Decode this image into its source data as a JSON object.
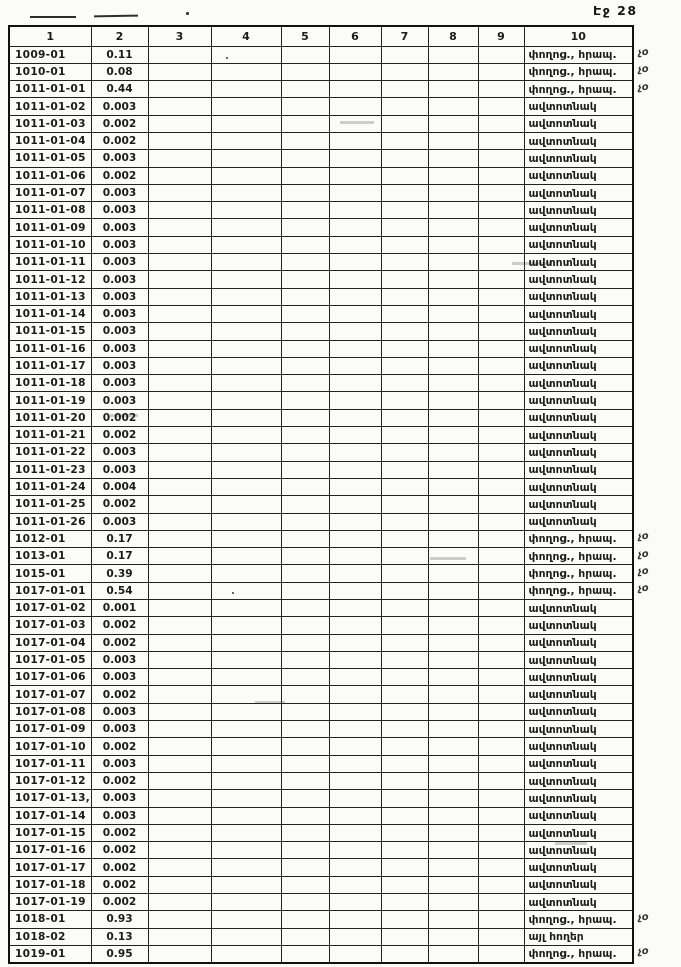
{
  "page": {
    "label": "Էջ 28"
  },
  "margin_note_glyph": "չօ",
  "table": {
    "headers": [
      "1",
      "2",
      "3",
      "4",
      "5",
      "6",
      "7",
      "8",
      "9",
      "10"
    ],
    "rows": [
      {
        "id": "1009-01",
        "value": "0.11",
        "use": "փողոց., հրապ.",
        "note": true
      },
      {
        "id": "1010-01",
        "value": "0.08",
        "use": "փողոց., հրապ.",
        "note": true
      },
      {
        "id": "1011-01-01",
        "value": "0.44",
        "use": "փողոց., հրապ.",
        "note": true
      },
      {
        "id": "1011-01-02",
        "value": "0.003",
        "use": "ավտոտնակ",
        "note": false
      },
      {
        "id": "1011-01-03",
        "value": "0.002",
        "use": "ավտոտնակ",
        "note": false
      },
      {
        "id": "1011-01-04",
        "value": "0.002",
        "use": "ավտոտնակ",
        "note": false
      },
      {
        "id": "1011-01-05",
        "value": "0.003",
        "use": "ավտոտնակ",
        "note": false
      },
      {
        "id": "1011-01-06",
        "value": "0.002",
        "use": "ավտոտնակ",
        "note": false
      },
      {
        "id": "1011-01-07",
        "value": "0.003",
        "use": "ավտոտնակ",
        "note": false
      },
      {
        "id": "1011-01-08",
        "value": "0.003",
        "use": "ավտոտնակ",
        "note": false
      },
      {
        "id": "1011-01-09",
        "value": "0.003",
        "use": "ավտոտնակ",
        "note": false
      },
      {
        "id": "1011-01-10",
        "value": "0.003",
        "use": "ավտոտնակ",
        "note": false
      },
      {
        "id": "1011-01-11",
        "value": "0.003",
        "use": "ավտոտնակ",
        "note": false
      },
      {
        "id": "1011-01-12",
        "value": "0.003",
        "use": "ավտոտնակ",
        "note": false
      },
      {
        "id": "1011-01-13",
        "value": "0.003",
        "use": "ավտոտնակ",
        "note": false
      },
      {
        "id": "1011-01-14",
        "value": "0.003",
        "use": "ավտոտնակ",
        "note": false
      },
      {
        "id": "1011-01-15",
        "value": "0.003",
        "use": "ավտոտնակ",
        "note": false
      },
      {
        "id": "1011-01-16",
        "value": "0.003",
        "use": "ավտոտնակ",
        "note": false
      },
      {
        "id": "1011-01-17",
        "value": "0.003",
        "use": "ավտոտնակ",
        "note": false
      },
      {
        "id": "1011-01-18",
        "value": "0.003",
        "use": "ավտոտնակ",
        "note": false
      },
      {
        "id": "1011-01-19",
        "value": "0.003",
        "use": "ավտոտնակ",
        "note": false
      },
      {
        "id": "1011-01-20",
        "value": "0.002",
        "use": "ավտոտնակ",
        "note": false
      },
      {
        "id": "1011-01-21",
        "value": "0.002",
        "use": "ավտոտնակ",
        "note": false
      },
      {
        "id": "1011-01-22",
        "value": "0.003",
        "use": "ավտոտնակ",
        "note": false
      },
      {
        "id": "1011-01-23",
        "value": "0.003",
        "use": "ավտոտնակ",
        "note": false
      },
      {
        "id": "1011-01-24",
        "value": "0.004",
        "use": "ավտոտնակ",
        "note": false
      },
      {
        "id": "1011-01-25",
        "value": "0.002",
        "use": "ավտոտնակ",
        "note": false
      },
      {
        "id": "1011-01-26",
        "value": "0.003",
        "use": "ավտոտնակ",
        "note": false
      },
      {
        "id": "1012-01",
        "value": "0.17",
        "use": "փողոց., հրապ.",
        "note": true
      },
      {
        "id": "1013-01",
        "value": "0.17",
        "use": "փողոց., հրապ.",
        "note": true
      },
      {
        "id": "1015-01",
        "value": "0.39",
        "use": "փողոց., հրապ.",
        "note": true
      },
      {
        "id": "1017-01-01",
        "value": "0.54",
        "use": "փողոց., հրապ.",
        "note": true
      },
      {
        "id": "1017-01-02",
        "value": "0.001",
        "use": "ավտոտնակ",
        "note": false
      },
      {
        "id": "1017-01-03",
        "value": "0.002",
        "use": "ավտոտնակ",
        "note": false
      },
      {
        "id": "1017-01-04",
        "value": "0.002",
        "use": "ավտոտնակ",
        "note": false
      },
      {
        "id": "1017-01-05",
        "value": "0.003",
        "use": "ավտոտնակ",
        "note": false
      },
      {
        "id": "1017-01-06",
        "value": "0.003",
        "use": "ավտոտնակ",
        "note": false
      },
      {
        "id": "1017-01-07",
        "value": "0.002",
        "use": "ավտոտնակ",
        "note": false
      },
      {
        "id": "1017-01-08",
        "value": "0.003",
        "use": "ավտոտնակ",
        "note": false
      },
      {
        "id": "1017-01-09",
        "value": "0.003",
        "use": "ավտոտնակ",
        "note": false
      },
      {
        "id": "1017-01-10",
        "value": "0.002",
        "use": "ավտոտնակ",
        "note": false
      },
      {
        "id": "1017-01-11",
        "value": "0.003",
        "use": "ավտոտնակ",
        "note": false
      },
      {
        "id": "1017-01-12",
        "value": "0.002",
        "use": "ավտոտնակ",
        "note": false
      },
      {
        "id": "1017-01-13,",
        "value": "0.003",
        "use": "ավտոտնակ",
        "note": false
      },
      {
        "id": "1017-01-14",
        "value": "0.003",
        "use": "ավտոտնակ",
        "note": false
      },
      {
        "id": "1017-01-15",
        "value": "0.002",
        "use": "ավտոտնակ",
        "note": false
      },
      {
        "id": "1017-01-16",
        "value": "0.002",
        "use": "ավտոտնակ",
        "note": false
      },
      {
        "id": "1017-01-17",
        "value": "0.002",
        "use": "ավտոտնակ",
        "note": false
      },
      {
        "id": "1017-01-18",
        "value": "0.002",
        "use": "ավտոտնակ",
        "note": false
      },
      {
        "id": "1017-01-19",
        "value": "0.002",
        "use": "ավտոտնակ",
        "note": false
      },
      {
        "id": "1018-01",
        "value": "0.93",
        "use": "փողոց., հրապ.",
        "note": true
      },
      {
        "id": "1018-02",
        "value": "0.13",
        "use": "այլ հողեր",
        "note": false
      },
      {
        "id": "1019-01",
        "value": "0.95",
        "use": "փողոց., հրապ.",
        "note": true
      }
    ]
  }
}
